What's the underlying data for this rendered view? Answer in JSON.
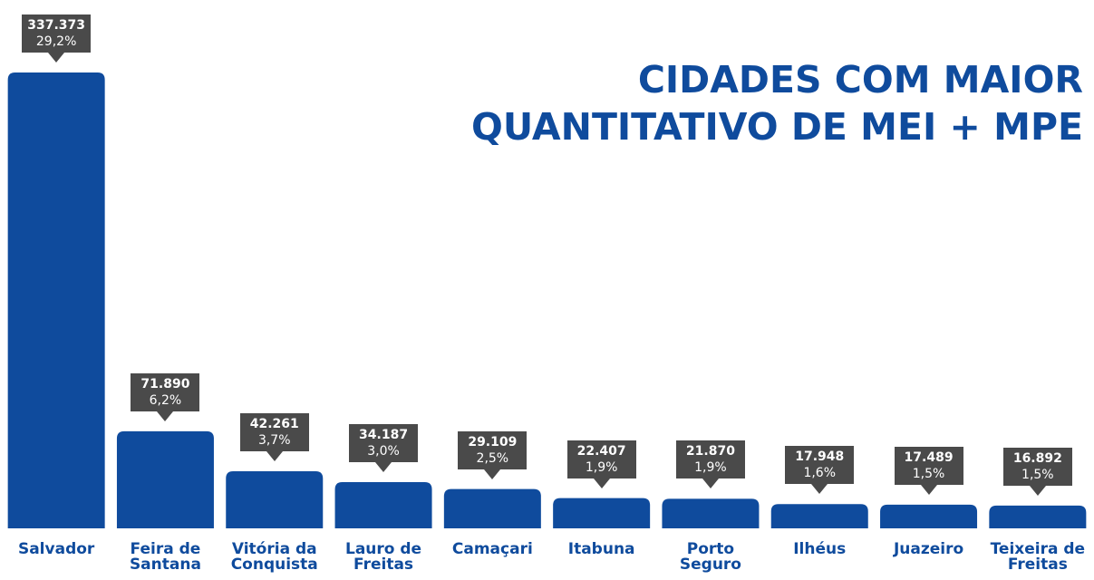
{
  "chart_data": {
    "type": "bar",
    "title": "CIDADES COM MAIOR\nQUANTITATIVO DE MEI + MPE",
    "categories": [
      "Salvador",
      "Feira de\nSantana",
      "Vitória da\nConquista",
      "Lauro de\nFreitas",
      "Camaçari",
      "Itabuna",
      "Porto\nSeguro",
      "Ilhéus",
      "Juazeiro",
      "Teixeira de\nFreitas"
    ],
    "values": [
      337373,
      71890,
      42261,
      34187,
      29109,
      22407,
      21870,
      17948,
      17489,
      16892
    ],
    "value_labels": [
      "337.373",
      "71.890",
      "42.261",
      "34.187",
      "29.109",
      "22.407",
      "21.870",
      "17.948",
      "17.489",
      "16.892"
    ],
    "shares": [
      29.2,
      6.2,
      3.7,
      3.0,
      2.5,
      1.9,
      1.9,
      1.6,
      1.5,
      1.5
    ],
    "share_labels": [
      "29,2%",
      "6,2%",
      "3,7%",
      "3,0%",
      "2,5%",
      "1,9%",
      "1,9%",
      "1,6%",
      "1,5%",
      "1,5%"
    ],
    "color": "#0f4b9d"
  }
}
